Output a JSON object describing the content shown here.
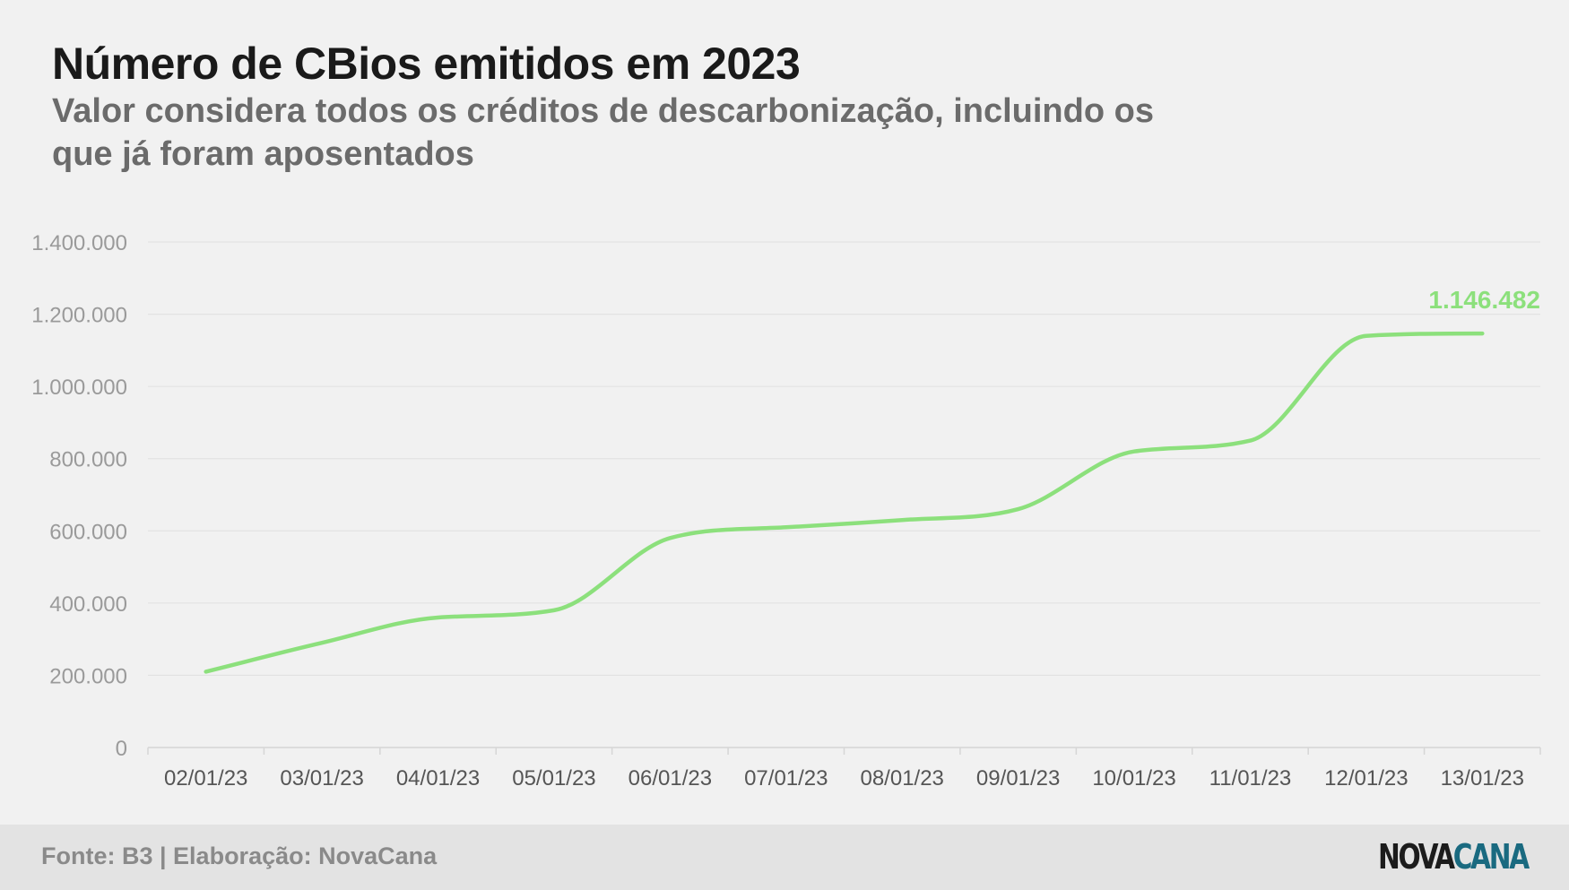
{
  "header": {
    "title": "Número de CBios emitidos em 2023",
    "subtitle": "Valor considera todos os créditos de descarbonização, incluindo os que já foram aposentados"
  },
  "chart_data": {
    "type": "line",
    "title": "Número de CBios emitidos em 2023",
    "subtitle": "Valor considera todos os créditos de descarbonização, incluindo os que já foram aposentados",
    "xlabel": "",
    "ylabel": "",
    "categories": [
      "02/01/23",
      "03/01/23",
      "04/01/23",
      "05/01/23",
      "06/01/23",
      "07/01/23",
      "08/01/23",
      "09/01/23",
      "10/01/23",
      "11/01/23",
      "12/01/23",
      "13/01/23"
    ],
    "series": [
      {
        "name": "",
        "values": [
          210000,
          290000,
          360000,
          380000,
          580000,
          610000,
          630000,
          660000,
          820000,
          850000,
          1140000,
          1146482
        ]
      }
    ],
    "ylim": [
      0,
      1400000
    ],
    "yticks": [
      0,
      200000,
      400000,
      600000,
      800000,
      1000000,
      1200000,
      1400000
    ],
    "ytick_labels": [
      "0",
      "200.000",
      "400.000",
      "600.000",
      "800.000",
      "1.000.000",
      "1.200.000",
      "1.400.000"
    ],
    "grid": true,
    "legend": "none",
    "last_value_label": "1.146.482",
    "colors": {
      "line": "#8ce07c",
      "label": "#8ce07c",
      "grid": "#e0e0e0",
      "tick_text": "#9a9a9a",
      "axis_text": "#555555"
    }
  },
  "footer": {
    "source": "Fonte: B3 | Elaboração: NovaCana",
    "logo_part1": "NOVA",
    "logo_part2": "CANA"
  }
}
